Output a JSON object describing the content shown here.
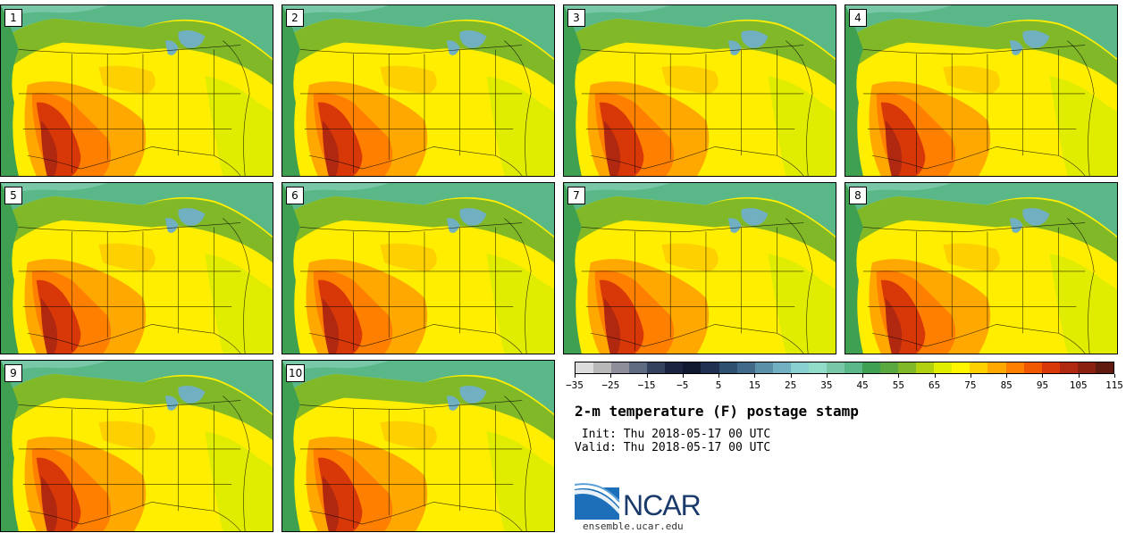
{
  "panels": [
    {
      "label": "1"
    },
    {
      "label": "2"
    },
    {
      "label": "3"
    },
    {
      "label": "4"
    },
    {
      "label": "5"
    },
    {
      "label": "6"
    },
    {
      "label": "7"
    },
    {
      "label": "8"
    },
    {
      "label": "9"
    },
    {
      "label": "10"
    }
  ],
  "colorbar": {
    "colors": [
      "#dcdcdc",
      "#b8b8b8",
      "#8e8e9a",
      "#5e6a80",
      "#34425e",
      "#1a2440",
      "#101830",
      "#203050",
      "#305070",
      "#406a88",
      "#5a90a8",
      "#70b0c0",
      "#88d0d0",
      "#90dcc8",
      "#78c8a8",
      "#5ab888",
      "#3ea050",
      "#5aa840",
      "#80b828",
      "#b0d010",
      "#e0ec00",
      "#fff600",
      "#ffd000",
      "#ffa800",
      "#ff8000",
      "#f05800",
      "#d83808",
      "#b02810",
      "#8a2010",
      "#601a10"
    ],
    "tick_labels": [
      "−35",
      "−25",
      "−15",
      "−5",
      "5",
      "15",
      "25",
      "35",
      "45",
      "55",
      "65",
      "75",
      "85",
      "95",
      "105",
      "115"
    ]
  },
  "title": "2-m temperature (F) postage stamp",
  "init_line": " Init: Thu 2018-05-17 00 UTC",
  "valid_line": "Valid: Thu 2018-05-17 00 UTC",
  "logo": {
    "text": "NCAR",
    "url": "ensemble.ucar.edu"
  }
}
